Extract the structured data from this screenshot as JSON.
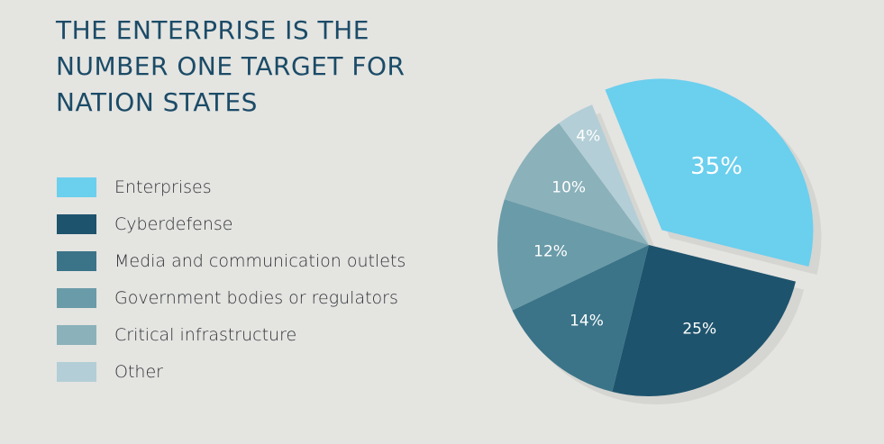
{
  "title": {
    "lines": [
      "THE ENTERPRISE IS THE",
      "NUMBER ONE TARGET FOR",
      "NATION STATES"
    ]
  },
  "legend": {
    "items": [
      {
        "label": "Enterprises",
        "color": "#6bcfee"
      },
      {
        "label": "Cyberdefense",
        "color": "#1e536d"
      },
      {
        "label": "Media and communication outlets",
        "color": "#3b7488"
      },
      {
        "label": "Government bodies or regulators",
        "color": "#6a9ba9"
      },
      {
        "label": "Critical infrastructure",
        "color": "#8bb1ba"
      },
      {
        "label": "Other",
        "color": "#b3ced6"
      }
    ]
  },
  "chart_data": {
    "type": "pie",
    "title": "THE ENTERPRISE IS THE NUMBER ONE TARGET FOR NATION STATES",
    "categories": [
      "Enterprises",
      "Cyberdefense",
      "Media and communication outlets",
      "Government bodies or regulators",
      "Critical infrastructure",
      "Other"
    ],
    "values": [
      35,
      25,
      14,
      12,
      10,
      4
    ],
    "labels": [
      "35%",
      "25%",
      "14%",
      "12%",
      "10%",
      "4%"
    ],
    "colors": [
      "#6bcfee",
      "#1e536d",
      "#3b7488",
      "#6a9ba9",
      "#8bb1ba",
      "#b3ced6"
    ],
    "exploded": [
      "Enterprises"
    ],
    "legend_position": "left",
    "unit": "%"
  }
}
